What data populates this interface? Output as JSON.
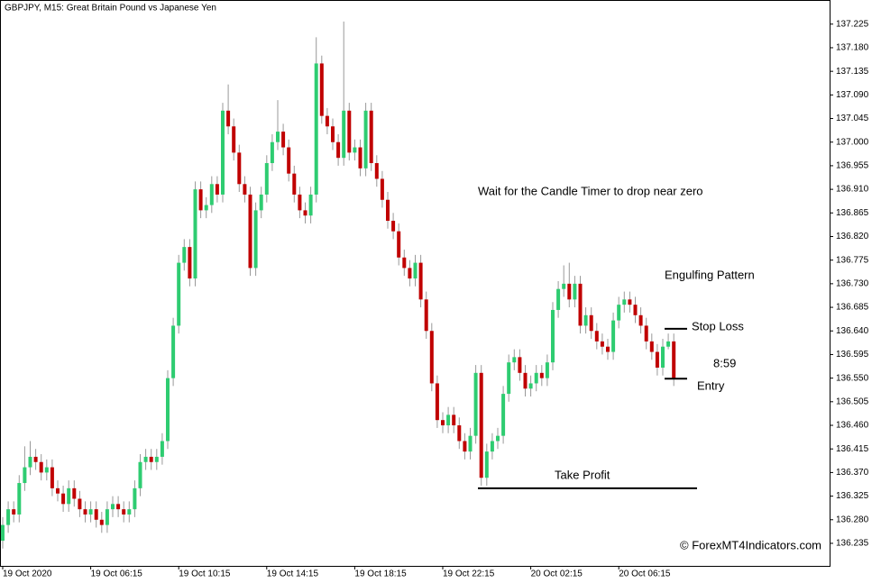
{
  "chart_data": {
    "type": "candlestick",
    "title": "GBPJPY, M15:  Great Britain Pound vs Japanese Yen",
    "annotations": [
      "Wait for the Candle Timer to drop near zero",
      "Engulfing Pattern",
      "8:59"
    ],
    "watermark": "© ForexMT4Indicators.com",
    "up_color": "#2ecc71",
    "down_color": "#c00000",
    "wick_color": "#999999",
    "timer_color": "#3cb371",
    "levels": [
      {
        "label": "Stop Loss",
        "value": 136.644
      },
      {
        "label": "Entry",
        "value": 136.549
      },
      {
        "label": "Take Profit",
        "value": 136.34
      }
    ],
    "x": [
      "19 Oct 2020",
      null,
      null,
      null,
      null,
      null,
      null,
      null,
      null,
      null,
      null,
      null,
      null,
      null,
      null,
      null,
      "19 Oct 06:15",
      null,
      null,
      null,
      null,
      null,
      null,
      null,
      null,
      null,
      null,
      null,
      null,
      null,
      null,
      null,
      "19 Oct 10:15",
      null,
      null,
      null,
      null,
      null,
      null,
      null,
      null,
      null,
      null,
      null,
      null,
      null,
      null,
      null,
      "19 Oct 14:15",
      null,
      null,
      null,
      null,
      null,
      null,
      null,
      null,
      null,
      null,
      null,
      null,
      null,
      null,
      null,
      "19 Oct 18:15",
      null,
      null,
      null,
      null,
      null,
      null,
      null,
      null,
      null,
      null,
      null,
      null,
      null,
      null,
      null,
      "19 Oct 22:15",
      null,
      null,
      null,
      null,
      null,
      null,
      null,
      null,
      null,
      null,
      null,
      null,
      null,
      null,
      null,
      "20 Oct 02:15",
      null,
      null,
      null,
      null,
      null,
      null,
      null,
      null,
      null,
      null,
      null,
      null,
      null,
      null,
      null,
      "20 Oct 06:15",
      null,
      null,
      null,
      null,
      null,
      null,
      null,
      null,
      null,
      null
    ],
    "open": [
      136.24,
      136.27,
      136.3,
      136.29,
      136.35,
      136.38,
      136.4,
      136.39,
      136.37,
      136.38,
      136.34,
      136.33,
      136.31,
      136.34,
      136.32,
      136.3,
      136.29,
      136.3,
      136.28,
      136.27,
      136.3,
      136.31,
      136.3,
      136.29,
      136.3,
      136.34,
      136.39,
      136.4,
      136.39,
      136.4,
      136.43,
      136.55,
      136.65,
      136.77,
      136.8,
      136.74,
      136.91,
      136.87,
      136.88,
      136.92,
      136.9,
      137.06,
      137.03,
      136.98,
      136.92,
      136.9,
      136.76,
      136.87,
      136.9,
      136.96,
      137,
      137.02,
      136.99,
      136.94,
      136.9,
      136.87,
      136.86,
      136.9,
      137.15,
      137.05,
      137.03,
      137,
      136.97,
      137.06,
      136.98,
      136.99,
      136.95,
      137.06,
      136.96,
      136.93,
      136.89,
      136.85,
      136.83,
      136.78,
      136.76,
      136.74,
      136.77,
      136.7,
      136.64,
      136.54,
      136.47,
      136.46,
      136.48,
      136.46,
      136.43,
      136.41,
      136.44,
      136.56,
      136.36,
      136.41,
      136.43,
      136.44,
      136.52,
      136.58,
      136.59,
      136.56,
      136.53,
      136.54,
      136.56,
      136.55,
      136.58,
      136.68,
      136.72,
      136.73,
      136.7,
      136.73,
      136.65,
      136.67,
      136.64,
      136.62,
      136.61,
      136.6,
      136.66,
      136.69,
      136.7,
      136.69,
      136.67,
      136.65,
      136.62,
      136.6,
      136.57,
      136.61,
      136.62
    ],
    "high": [
      136.285,
      136.315,
      136.315,
      136.365,
      136.42,
      136.43,
      136.415,
      136.405,
      136.395,
      136.395,
      136.355,
      136.345,
      136.355,
      136.355,
      136.335,
      136.315,
      136.315,
      136.315,
      136.295,
      136.315,
      136.325,
      136.325,
      136.315,
      136.315,
      136.355,
      136.405,
      136.415,
      136.415,
      136.415,
      136.445,
      136.565,
      136.665,
      136.785,
      136.815,
      136.815,
      136.925,
      136.925,
      136.895,
      136.935,
      136.935,
      137.075,
      137.11,
      137.045,
      136.995,
      136.935,
      136.915,
      136.885,
      136.915,
      136.975,
      137.015,
      137.08,
      137.035,
      137.005,
      136.955,
      136.915,
      136.885,
      136.915,
      137.2,
      137.165,
      137.065,
      137.045,
      137.015,
      137.23,
      137.075,
      137.005,
      137.005,
      137.075,
      137.075,
      136.975,
      136.945,
      136.905,
      136.865,
      136.845,
      136.795,
      136.775,
      136.785,
      136.785,
      136.715,
      136.655,
      136.555,
      136.485,
      136.495,
      136.495,
      136.475,
      136.445,
      136.455,
      136.575,
      136.575,
      136.425,
      136.445,
      136.455,
      136.535,
      136.595,
      136.605,
      136.605,
      136.575,
      136.555,
      136.575,
      136.575,
      136.595,
      136.695,
      136.735,
      136.765,
      136.77,
      136.745,
      136.745,
      136.685,
      136.685,
      136.655,
      136.635,
      136.625,
      136.675,
      136.705,
      136.715,
      136.715,
      136.705,
      136.685,
      136.665,
      136.635,
      136.615,
      136.625,
      136.635,
      136.635
    ],
    "low": [
      136.225,
      136.255,
      136.275,
      136.275,
      136.335,
      136.365,
      136.375,
      136.355,
      136.355,
      136.325,
      136.315,
      136.295,
      136.295,
      136.305,
      136.285,
      136.275,
      136.275,
      136.265,
      136.255,
      136.255,
      136.285,
      136.285,
      136.275,
      136.275,
      136.285,
      136.325,
      136.375,
      136.375,
      136.375,
      136.385,
      136.415,
      136.535,
      136.635,
      136.755,
      136.725,
      136.725,
      136.855,
      136.855,
      136.865,
      136.885,
      136.885,
      137.015,
      136.965,
      136.905,
      136.885,
      136.745,
      136.745,
      136.855,
      136.885,
      136.945,
      136.985,
      136.975,
      136.925,
      136.885,
      136.855,
      136.845,
      136.845,
      136.885,
      137.035,
      137.015,
      136.985,
      136.955,
      136.955,
      136.965,
      136.965,
      136.935,
      136.935,
      136.945,
      136.915,
      136.875,
      136.835,
      136.815,
      136.765,
      136.745,
      136.725,
      136.725,
      136.685,
      136.625,
      136.525,
      136.455,
      136.445,
      136.445,
      136.445,
      136.415,
      136.395,
      136.395,
      136.425,
      136.345,
      136.345,
      136.395,
      136.415,
      136.425,
      136.505,
      136.565,
      136.545,
      136.515,
      136.515,
      136.525,
      136.535,
      136.535,
      136.565,
      136.665,
      136.705,
      136.685,
      136.685,
      136.635,
      136.635,
      136.625,
      136.605,
      136.595,
      136.585,
      136.585,
      136.645,
      136.675,
      136.675,
      136.655,
      136.635,
      136.605,
      136.585,
      136.555,
      136.555,
      136.605,
      136.535
    ],
    "close": [
      136.27,
      136.3,
      136.29,
      136.35,
      136.38,
      136.4,
      136.39,
      136.37,
      136.38,
      136.34,
      136.33,
      136.31,
      136.34,
      136.32,
      136.3,
      136.29,
      136.3,
      136.28,
      136.27,
      136.3,
      136.31,
      136.3,
      136.29,
      136.3,
      136.34,
      136.39,
      136.4,
      136.39,
      136.4,
      136.43,
      136.55,
      136.65,
      136.77,
      136.8,
      136.74,
      136.91,
      136.87,
      136.88,
      136.92,
      136.9,
      137.06,
      137.03,
      136.98,
      136.92,
      136.9,
      136.76,
      136.87,
      136.9,
      136.96,
      137,
      137.02,
      136.99,
      136.94,
      136.9,
      136.87,
      136.86,
      136.9,
      137.15,
      137.05,
      137.03,
      137,
      136.97,
      137.06,
      136.98,
      136.99,
      136.95,
      137.06,
      136.96,
      136.93,
      136.89,
      136.85,
      136.83,
      136.78,
      136.76,
      136.74,
      136.77,
      136.7,
      136.64,
      136.54,
      136.47,
      136.46,
      136.48,
      136.46,
      136.43,
      136.41,
      136.44,
      136.56,
      136.36,
      136.41,
      136.43,
      136.44,
      136.52,
      136.58,
      136.59,
      136.56,
      136.53,
      136.54,
      136.56,
      136.55,
      136.58,
      136.68,
      136.72,
      136.73,
      136.7,
      136.73,
      136.65,
      136.67,
      136.64,
      136.62,
      136.61,
      136.6,
      136.66,
      136.69,
      136.7,
      136.69,
      136.67,
      136.65,
      136.62,
      136.6,
      136.57,
      136.61,
      136.62,
      136.55
    ],
    "ylim": [
      136.192,
      137.271
    ],
    "yticks": [
      136.235,
      {
        "value": 136.28,
        "label": "136.280"
      },
      136.325,
      {
        "value": 136.37,
        "label": "136.370"
      },
      136.415,
      {
        "value": 136.46,
        "label": "136.460"
      },
      136.505,
      {
        "value": 136.55,
        "label": "136.550"
      },
      136.595,
      {
        "value": 136.64,
        "label": "136.640"
      },
      136.685,
      {
        "value": 136.73,
        "label": "136.730"
      },
      136.775,
      {
        "value": 136.82,
        "label": "136.820"
      },
      136.865,
      {
        "value": 136.91,
        "label": "136.910"
      },
      136.955,
      {
        "value": 137,
        "label": "137.000"
      },
      137.045,
      {
        "value": 137.09,
        "label": "137.090"
      },
      137.135,
      {
        "value": 137.18,
        "label": "137.180"
      },
      137.225
    ]
  }
}
